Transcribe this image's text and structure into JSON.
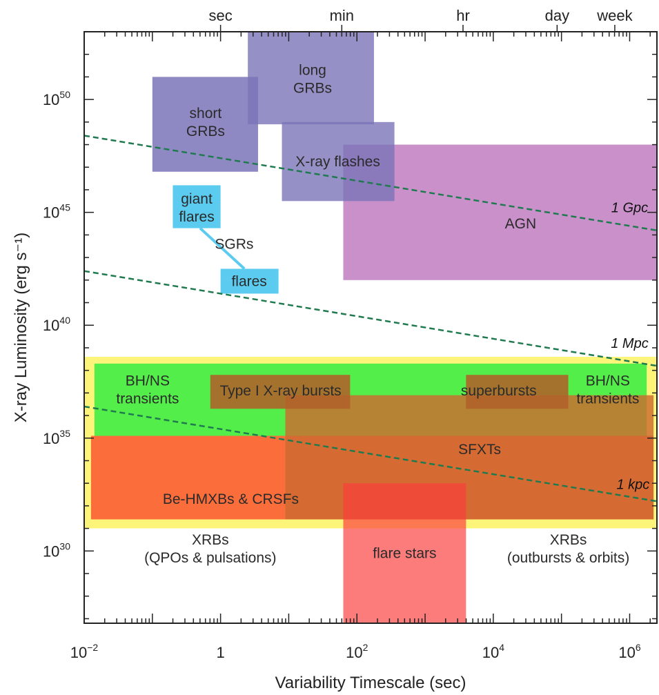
{
  "chart_data": {
    "type": "area",
    "title": "",
    "xlabel": "Variability Timescale (sec)",
    "ylabel": "X-ray Luminosity (erg s⁻¹)",
    "x_scale": "log",
    "y_scale": "log",
    "xlim_log10": [
      -2,
      6.4
    ],
    "ylim_log10": [
      26.8,
      53
    ],
    "x_ticks": [
      {
        "base": "10",
        "exp": "−2",
        "log10": -2
      },
      {
        "base": "1",
        "exp": "",
        "log10": 0
      },
      {
        "base": "10",
        "exp": "2",
        "log10": 2
      },
      {
        "base": "10",
        "exp": "4",
        "log10": 4
      },
      {
        "base": "10",
        "exp": "6",
        "log10": 6
      }
    ],
    "y_ticks": [
      {
        "base": "10",
        "exp": "30",
        "log10": 30
      },
      {
        "base": "10",
        "exp": "35",
        "log10": 35
      },
      {
        "base": "10",
        "exp": "40",
        "log10": 40
      },
      {
        "base": "10",
        "exp": "45",
        "log10": 45
      },
      {
        "base": "10",
        "exp": "50",
        "log10": 50
      }
    ],
    "top_axis": [
      {
        "label": "sec",
        "log10": 0
      },
      {
        "label": "min",
        "log10": 1.778
      },
      {
        "label": "hr",
        "log10": 3.556
      },
      {
        "label": "day",
        "log10": 4.936
      },
      {
        "label": "week",
        "log10": 5.782
      }
    ],
    "regions": [
      {
        "name": "yellow-band",
        "x_log10": [
          -2,
          6.4
        ],
        "y_log10": [
          31.0,
          38.6
        ],
        "color": "#fdf57a",
        "opacity": 1
      },
      {
        "name": "green-band",
        "x_log10": [
          -1.85,
          6.25
        ],
        "y_log10": [
          35.0,
          38.3
        ],
        "color": "#54ee4a",
        "opacity": 1
      },
      {
        "name": "be-hmxb-band",
        "x_log10": [
          -1.9,
          6.35
        ],
        "y_log10": [
          31.4,
          35.1
        ],
        "color": "#fb6e3c",
        "opacity": 1
      },
      {
        "name": "sfxt-band",
        "x_log10": [
          0.95,
          6.35
        ],
        "y_log10": [
          31.4,
          36.9
        ],
        "color": "#cc6a30",
        "opacity": 0.82
      },
      {
        "name": "flare-stars-band",
        "x_log10": [
          1.8,
          3.6
        ],
        "y_log10": [
          26.8,
          33.0
        ],
        "color": "#fb3c3c",
        "opacity": 0.68
      },
      {
        "name": "type-i-bursts-box",
        "x_log10": [
          -0.15,
          1.9
        ],
        "y_log10": [
          36.3,
          37.8
        ],
        "color": "#b0612a",
        "opacity": 0.88
      },
      {
        "name": "superbursts-box",
        "x_log10": [
          3.6,
          5.1
        ],
        "y_log10": [
          36.3,
          37.8
        ],
        "color": "#b0612a",
        "opacity": 0.88
      },
      {
        "name": "agn-box",
        "x_log10": [
          1.8,
          6.4
        ],
        "y_log10": [
          42.0,
          48.0
        ],
        "color": "#c07cc0",
        "opacity": 0.85
      },
      {
        "name": "x-ray-flashes-box",
        "x_log10": [
          0.9,
          2.55
        ],
        "y_log10": [
          45.5,
          49.0
        ],
        "color": "#7b74b8",
        "opacity": 0.8
      },
      {
        "name": "long-grbs-box",
        "x_log10": [
          0.4,
          2.25
        ],
        "y_log10": [
          48.9,
          53.0
        ],
        "color": "#7b74b8",
        "opacity": 0.8
      },
      {
        "name": "short-grbs-box",
        "x_log10": [
          -1.0,
          0.55
        ],
        "y_log10": [
          46.8,
          51.0
        ],
        "color": "#7b74b8",
        "opacity": 0.85
      },
      {
        "name": "giant-flares-box",
        "x_log10": [
          -0.7,
          0.0
        ],
        "y_log10": [
          44.3,
          46.2
        ],
        "color": "#5ccbf0",
        "opacity": 1
      },
      {
        "name": "flares-box",
        "x_log10": [
          0.0,
          0.85
        ],
        "y_log10": [
          41.4,
          42.5
        ],
        "color": "#5ccbf0",
        "opacity": 1
      }
    ],
    "region_labels": [
      {
        "lines": [
          "long",
          "GRBs"
        ],
        "x_log10": 1.35,
        "y_log10": 50.9
      },
      {
        "lines": [
          "short",
          "GRBs"
        ],
        "x_log10": -0.22,
        "y_log10": 49.0
      },
      {
        "lines": [
          "X-ray flashes"
        ],
        "x_log10": 1.72,
        "y_log10": 47.25
      },
      {
        "lines": [
          "giant",
          "flares"
        ],
        "x_log10": -0.35,
        "y_log10": 45.2
      },
      {
        "lines": [
          "SGRs"
        ],
        "x_log10": 0.2,
        "y_log10": 43.6
      },
      {
        "lines": [
          "flares"
        ],
        "x_log10": 0.42,
        "y_log10": 41.95
      },
      {
        "lines": [
          "AGN"
        ],
        "x_log10": 4.4,
        "y_log10": 44.5
      },
      {
        "lines": [
          "BH/NS",
          "transients"
        ],
        "x_log10": -1.07,
        "y_log10": 37.15
      },
      {
        "lines": [
          "Type I X-ray bursts"
        ],
        "x_log10": 0.88,
        "y_log10": 37.1
      },
      {
        "lines": [
          "superbursts"
        ],
        "x_log10": 4.08,
        "y_log10": 37.1
      },
      {
        "lines": [
          "BH/NS",
          "transients"
        ],
        "x_log10": 5.68,
        "y_log10": 37.15
      },
      {
        "lines": [
          "SFXTs"
        ],
        "x_log10": 3.8,
        "y_log10": 34.5
      },
      {
        "lines": [
          "Be-HMXBs & CRSFs"
        ],
        "x_log10": 0.15,
        "y_log10": 32.3
      },
      {
        "lines": [
          "XRBs",
          "(QPOs & pulsations)"
        ],
        "x_log10": -0.15,
        "y_log10": 30.1
      },
      {
        "lines": [
          "flare stars"
        ],
        "x_log10": 2.7,
        "y_log10": 29.9
      },
      {
        "lines": [
          "XRBs",
          "(outbursts & orbits)"
        ],
        "x_log10": 5.1,
        "y_log10": 30.1
      }
    ],
    "distance_lines": [
      {
        "label": "1 Gpc",
        "color": "#1f7a4f",
        "from": {
          "x_log10": -2,
          "y_log10": 48.4
        },
        "to": {
          "x_log10": 6.4,
          "y_log10": 44.2
        },
        "label_at": {
          "x_log10": 6.0,
          "y_log10": 45.0
        }
      },
      {
        "label": "1 Mpc",
        "color": "#1f7a4f",
        "from": {
          "x_log10": -2,
          "y_log10": 42.4
        },
        "to": {
          "x_log10": 6.4,
          "y_log10": 38.2
        },
        "label_at": {
          "x_log10": 6.0,
          "y_log10": 39.0
        }
      },
      {
        "label": "1 kpc",
        "color": "#1f7a4f",
        "from": {
          "x_log10": -2,
          "y_log10": 36.4
        },
        "to": {
          "x_log10": 6.4,
          "y_log10": 32.2
        },
        "label_at": {
          "x_log10": 6.05,
          "y_log10": 32.75
        }
      }
    ],
    "connectors": [
      {
        "name": "sgr-connector",
        "color": "#5ccbf0",
        "from": {
          "x_log10": -0.3,
          "y_log10": 44.3
        },
        "to": {
          "x_log10": 0.35,
          "y_log10": 42.5
        }
      }
    ],
    "grid": false,
    "legend": "none"
  }
}
